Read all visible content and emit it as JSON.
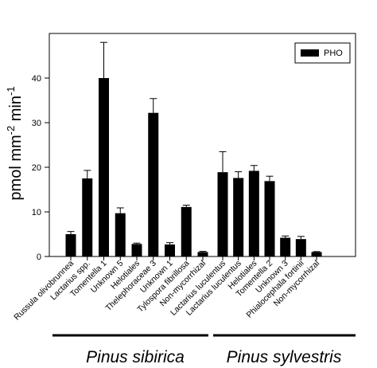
{
  "chart_data": {
    "type": "bar",
    "ylabel_base": "pmol mm",
    "ylabel_exp1": "-2",
    "ylabel_mid": " min",
    "ylabel_exp2": "-1",
    "ylim": [
      0,
      50
    ],
    "yticks": [
      "0",
      "10",
      "20",
      "30",
      "40"
    ],
    "legend": {
      "label": "PHO",
      "position": "top-right",
      "color": "#000000"
    },
    "groups": [
      {
        "name": "Pinus sibirica",
        "categories": [
          "Russula olivobrunnea",
          "Lactarius spp.",
          "Tomentella 1",
          "Unknown 5",
          "Helotiales",
          "Thelephoraceae 3",
          "Unknown 1",
          "Tylospora fibrillosa",
          "Non-mycorrhizal"
        ],
        "values": [
          5.0,
          17.5,
          40.0,
          9.7,
          2.8,
          32.2,
          2.7,
          11.1,
          1.0
        ],
        "errors": [
          0.6,
          1.8,
          8.0,
          1.2,
          0.2,
          3.2,
          0.4,
          0.4,
          0.15
        ]
      },
      {
        "name": "Pinus sylvestris",
        "categories": [
          "Lactarius luculentus",
          "Lactarius luculentus",
          "Helotiales",
          "Tomentella 2",
          "Unknown 3",
          "Phialocephala fortinii",
          "Non-mycorrhizal"
        ],
        "values": [
          18.9,
          17.6,
          19.2,
          16.9,
          4.2,
          3.9,
          1.0
        ],
        "errors": [
          4.6,
          1.4,
          1.2,
          1.1,
          0.4,
          0.6,
          0.1
        ]
      }
    ]
  }
}
